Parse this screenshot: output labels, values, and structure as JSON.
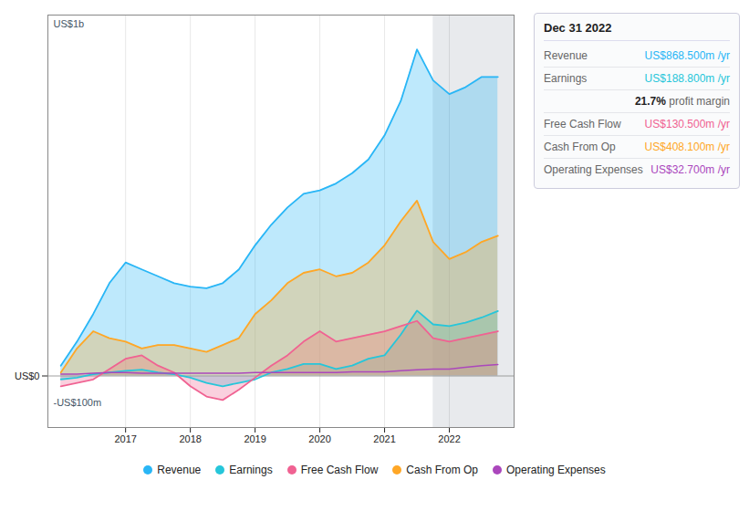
{
  "chart_data": {
    "type": "area",
    "x": [
      2016.0,
      2016.25,
      2016.5,
      2016.75,
      2017.0,
      2017.25,
      2017.5,
      2017.75,
      2018.0,
      2018.25,
      2018.5,
      2018.75,
      2019.0,
      2019.25,
      2019.5,
      2019.75,
      2020.0,
      2020.25,
      2020.5,
      2020.75,
      2021.0,
      2021.25,
      2021.5,
      2021.75,
      2022.0,
      2022.25,
      2022.5,
      2022.75
    ],
    "series": [
      {
        "name": "Revenue",
        "color": "#29b6f6",
        "type": "area",
        "values": [
          30,
          100,
          180,
          270,
          330,
          310,
          290,
          270,
          260,
          255,
          270,
          310,
          380,
          440,
          490,
          530,
          540,
          560,
          590,
          630,
          700,
          800,
          950,
          860,
          820,
          840,
          870,
          870
        ]
      },
      {
        "name": "Earnings",
        "color": "#26c6da",
        "type": "area",
        "values": [
          -10,
          -5,
          5,
          10,
          15,
          18,
          10,
          5,
          -5,
          -20,
          -30,
          -20,
          -10,
          10,
          20,
          35,
          35,
          20,
          30,
          50,
          60,
          120,
          190,
          150,
          145,
          155,
          170,
          189
        ]
      },
      {
        "name": "Free Cash Flow",
        "color": "#f06292",
        "type": "area",
        "values": [
          -30,
          -20,
          -10,
          20,
          50,
          60,
          30,
          10,
          -30,
          -60,
          -70,
          -40,
          -5,
          30,
          60,
          100,
          130,
          100,
          110,
          120,
          130,
          145,
          160,
          110,
          100,
          110,
          120,
          130
        ]
      },
      {
        "name": "Cash From Op",
        "color": "#ffa726",
        "type": "area",
        "values": [
          10,
          80,
          130,
          110,
          100,
          80,
          90,
          90,
          80,
          70,
          90,
          110,
          180,
          220,
          270,
          300,
          310,
          290,
          300,
          330,
          380,
          450,
          510,
          390,
          340,
          360,
          390,
          408
        ]
      },
      {
        "name": "Operating Expenses",
        "color": "#ab47bc",
        "type": "line",
        "values": [
          5,
          5,
          8,
          10,
          10,
          8,
          8,
          8,
          8,
          8,
          8,
          8,
          10,
          10,
          10,
          10,
          10,
          10,
          12,
          12,
          12,
          15,
          18,
          20,
          20,
          25,
          30,
          33
        ]
      }
    ],
    "xlim": [
      2015.8,
      2023.0
    ],
    "xticks": [
      2017,
      2018,
      2019,
      2020,
      2021,
      2022
    ],
    "ylim": [
      -150,
      1050
    ],
    "yticks": [
      {
        "value": 0,
        "label": "US$0"
      }
    ],
    "grid": true,
    "legend": "bottom",
    "highlight": [
      2021.75,
      2023.0
    ],
    "annotations": [
      {
        "text": "US$1b"
      },
      {
        "text": "-US$100m"
      }
    ],
    "tooltip": {
      "title": "Dec 31 2022",
      "rows": [
        {
          "label": "Revenue",
          "text": "US$868.500m /yr",
          "color": "#29b6f6"
        },
        {
          "label": "Earnings",
          "text": "US$188.800m /yr",
          "color": "#26c6da"
        },
        {
          "text": "21.7% profit margin",
          "bold_prefix": "21.7%"
        },
        {
          "label": "Free Cash Flow",
          "text": "US$130.500m /yr",
          "color": "#f06292"
        },
        {
          "label": "Cash From Op",
          "text": "US$408.100m /yr",
          "color": "#ffa726"
        },
        {
          "label": "Operating Expenses",
          "text": "US$32.700m /yr",
          "color": "#ab47bc"
        }
      ]
    }
  }
}
